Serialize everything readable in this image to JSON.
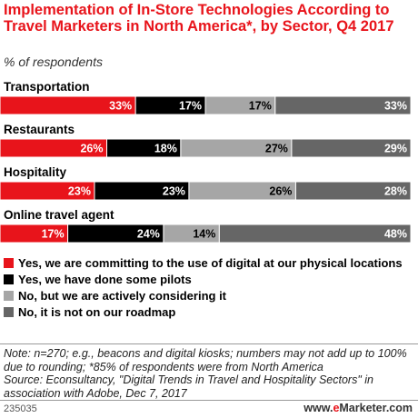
{
  "header": {
    "title": "Implementation of In-Store Technologies According to Travel Marketers in North America*, by Sector, Q4 2017",
    "subtitle": "% of respondents"
  },
  "colors": {
    "committing": "#e8141b",
    "pilots": "#000000",
    "considering": "#a6a6a6",
    "not_on_roadmap": "#666666"
  },
  "chart_data": {
    "type": "bar",
    "orientation": "horizontal",
    "stacked": true,
    "categories": [
      "Transportation",
      "Restaurants",
      "Hospitality",
      "Online travel agent"
    ],
    "series": [
      {
        "name": "Yes, we are committing to the use of digital at our physical locations",
        "values": [
          33,
          26,
          23,
          17
        ],
        "labels": [
          "33%",
          "26%",
          "23%",
          "17%"
        ],
        "color": "#e8141b"
      },
      {
        "name": "Yes, we have done some pilots",
        "values": [
          17,
          18,
          23,
          24
        ],
        "labels": [
          "17%",
          "18%",
          "23%",
          "24%"
        ],
        "color": "#000000"
      },
      {
        "name": "No, but we are actively considering it",
        "values": [
          17,
          27,
          26,
          14
        ],
        "labels": [
          "17%",
          "27%",
          "26%",
          "14%"
        ],
        "color": "#a6a6a6"
      },
      {
        "name": "No, it is not on our roadmap",
        "values": [
          33,
          29,
          28,
          48
        ],
        "labels": [
          "33%",
          "29%",
          "28%",
          "48%"
        ],
        "color": "#666666"
      }
    ],
    "legend_position": "bottom",
    "grid": false
  },
  "legend": [
    {
      "label": "Yes, we are committing to the use of digital at our physical locations",
      "color": "#e8141b"
    },
    {
      "label": "Yes, we have done some pilots",
      "color": "#000000"
    },
    {
      "label": "No, but we are actively considering it",
      "color": "#a6a6a6"
    },
    {
      "label": "No, it is not on our roadmap",
      "color": "#666666"
    }
  ],
  "footer": {
    "note": "Note: n=270; e.g., beacons and digital kiosks; numbers may not add up to 100% due to rounding; *85% of respondents were from North America",
    "source": "Source: Econsultancy, \"Digital Trends in Travel and Hospitality Sectors\" in association with Adobe, Dec 7, 2017",
    "chart_id": "235035",
    "brand_prefix": "www.",
    "brand_e": "e",
    "brand_suffix": "Marketer.com"
  }
}
